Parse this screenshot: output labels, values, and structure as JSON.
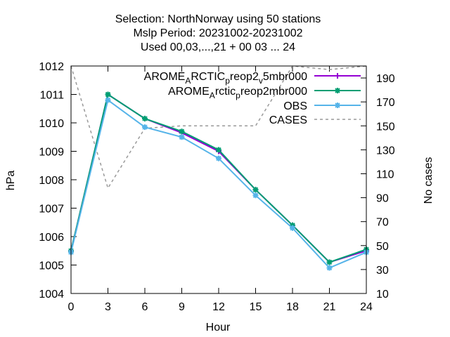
{
  "chart_data": {
    "type": "line",
    "title": [
      "Selection: NorthNorway using    50 stations",
      "Mslp   Period: 20231002-20231002",
      "Used  00,03,...,21  + 00 03 ... 24"
    ],
    "xlabel": "Hour",
    "ylabel": "hPa",
    "y2label": "No cases",
    "xlim": [
      0,
      24
    ],
    "ylim": [
      1004,
      1012
    ],
    "y2lim": [
      10,
      200
    ],
    "x_ticks": [
      0,
      3,
      6,
      9,
      12,
      15,
      18,
      21,
      24
    ],
    "y_ticks": [
      1004,
      1005,
      1006,
      1007,
      1008,
      1009,
      1010,
      1011,
      1012
    ],
    "y2_ticks": [
      10,
      30,
      50,
      70,
      90,
      110,
      130,
      150,
      170,
      190
    ],
    "x": [
      0,
      3,
      6,
      9,
      12,
      15,
      18,
      21,
      24
    ],
    "legend_position": "top-right",
    "grid": false,
    "series": [
      {
        "name": "AROME_ARCTIC_preop2_v5mbr000",
        "legend_parts": [
          [
            "AROME",
            "n"
          ],
          [
            "A",
            "s"
          ],
          [
            "RCTIC",
            "n"
          ],
          [
            "p",
            "s"
          ],
          [
            "reop2",
            "n"
          ],
          [
            "v",
            "s"
          ],
          [
            "5mbr000",
            "n"
          ]
        ],
        "color": "#9400d3",
        "marker": "plus",
        "axis": "y",
        "values": [
          1005.5,
          1011.0,
          1010.15,
          1009.65,
          1009.0,
          1007.65,
          1006.4,
          1005.1,
          1005.5
        ]
      },
      {
        "name": "AROME_Arctic_preop2mbr000",
        "legend_parts": [
          [
            "AROME",
            "n"
          ],
          [
            "A",
            "s"
          ],
          [
            "rctic",
            "n"
          ],
          [
            "p",
            "s"
          ],
          [
            "reop2mbr000",
            "n"
          ]
        ],
        "color": "#009e73",
        "marker": "star",
        "axis": "y",
        "values": [
          1005.5,
          1011.0,
          1010.15,
          1009.7,
          1009.05,
          1007.65,
          1006.4,
          1005.1,
          1005.55
        ]
      },
      {
        "name": "OBS",
        "legend_parts": [
          [
            "OBS",
            "n"
          ]
        ],
        "color": "#56b4e9",
        "marker": "star",
        "axis": "y",
        "values": [
          1005.45,
          1010.8,
          1009.85,
          1009.5,
          1008.75,
          1007.45,
          1006.3,
          1004.9,
          1005.45
        ]
      },
      {
        "name": "CASES",
        "legend_parts": [
          [
            "CASES",
            "n"
          ]
        ],
        "color": "#999999",
        "marker": "none",
        "dash": true,
        "axis": "y2",
        "values": [
          200,
          98,
          148,
          150,
          150,
          150,
          200,
          197,
          200
        ]
      }
    ]
  }
}
